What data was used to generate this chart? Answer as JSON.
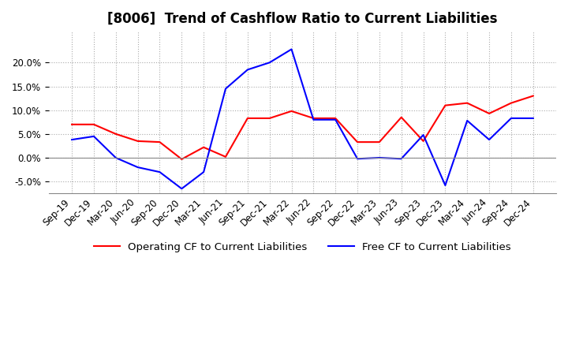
{
  "title": "[8006]  Trend of Cashflow Ratio to Current Liabilities",
  "x_labels": [
    "Sep-19",
    "Dec-19",
    "Mar-20",
    "Jun-20",
    "Sep-20",
    "Dec-20",
    "Mar-21",
    "Jun-21",
    "Sep-21",
    "Dec-21",
    "Mar-22",
    "Jun-22",
    "Sep-22",
    "Dec-22",
    "Mar-23",
    "Jun-23",
    "Sep-23",
    "Dec-23",
    "Mar-24",
    "Jun-24",
    "Sep-24",
    "Dec-24"
  ],
  "operating_cf": [
    0.07,
    0.07,
    0.05,
    0.035,
    0.033,
    -0.003,
    0.022,
    0.002,
    0.083,
    0.083,
    0.098,
    0.083,
    0.083,
    0.033,
    0.033,
    0.085,
    0.035,
    0.11,
    0.115,
    0.093,
    0.115,
    0.13
  ],
  "free_cf": [
    0.038,
    0.045,
    0.0,
    -0.02,
    -0.03,
    -0.065,
    -0.03,
    0.145,
    0.185,
    0.2,
    0.228,
    0.08,
    0.08,
    -0.002,
    0.0,
    -0.002,
    0.048,
    -0.058,
    0.078,
    0.038,
    0.083,
    0.083
  ],
  "operating_color": "#ff0000",
  "free_color": "#0000ff",
  "ylim": [
    -0.075,
    0.265
  ],
  "yticks": [
    -0.05,
    0.0,
    0.05,
    0.1,
    0.15,
    0.2
  ],
  "background_color": "#ffffff",
  "grid_color": "#aaaaaa",
  "title_fontsize": 12,
  "label_fontsize": 8.5
}
